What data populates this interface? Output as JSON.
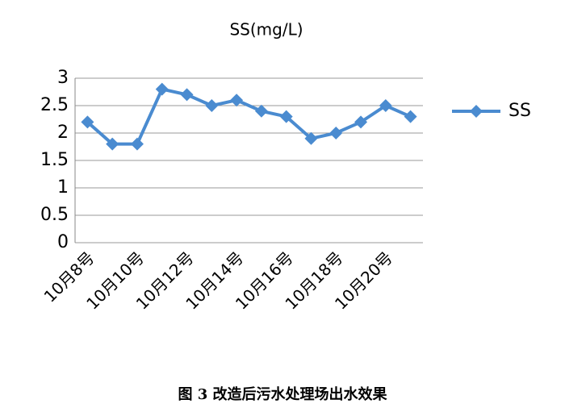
{
  "chart_data": {
    "type": "line",
    "title": "SS(mg/L)",
    "categories": [
      "10月8号",
      null,
      "10月10号",
      null,
      "10月12号",
      null,
      "10月14号",
      null,
      "10月16号",
      null,
      "10月18号",
      null,
      "10月20号",
      null
    ],
    "series": [
      {
        "name": "SS",
        "color": "#4a8bd0",
        "values": [
          2.2,
          1.8,
          1.8,
          2.8,
          2.7,
          2.5,
          2.6,
          2.4,
          2.3,
          1.9,
          2.0,
          2.2,
          2.5,
          2.3
        ]
      }
    ],
    "ylim": [
      0,
      3
    ],
    "yticks": [
      0,
      0.5,
      1,
      1.5,
      2,
      2.5,
      3
    ],
    "grid": true,
    "legend": "right",
    "caption": "图 3  改造后污水处理场出水效果"
  }
}
